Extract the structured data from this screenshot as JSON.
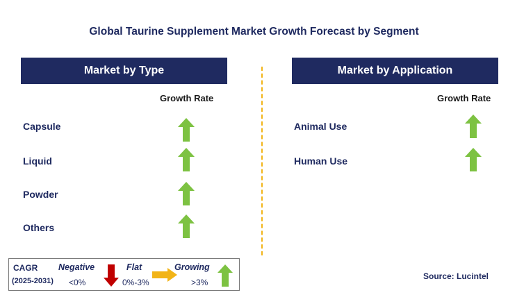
{
  "title": "Global Taurine Supplement Market Growth Forecast by Segment",
  "left_panel": {
    "header": "Market by Type",
    "growth_label": "Growth Rate",
    "rows": [
      {
        "label": "Capsule",
        "trend": "growing"
      },
      {
        "label": "Liquid",
        "trend": "growing"
      },
      {
        "label": "Powder",
        "trend": "growing"
      },
      {
        "label": "Others",
        "trend": "growing"
      }
    ]
  },
  "right_panel": {
    "header": "Market by Application",
    "growth_label": "Growth Rate",
    "rows": [
      {
        "label": "Animal Use",
        "trend": "growing"
      },
      {
        "label": "Human Use",
        "trend": "growing"
      }
    ]
  },
  "legend": {
    "cagr_label": "CAGR",
    "period": "(2025-2031)",
    "negative_label": "Negative",
    "negative_range": "<0%",
    "flat_label": "Flat",
    "flat_range": "0%-3%",
    "growing_label": "Growing",
    "growing_range": ">3%"
  },
  "source": "Source: Lucintel",
  "colors": {
    "navy": "#1f2a60",
    "growing": "#7dc242",
    "negative": "#c00000",
    "flat": "#f2b417"
  },
  "icons": {
    "growing": "up-arrow-icon",
    "negative": "down-arrow-icon",
    "flat": "right-arrow-icon"
  }
}
